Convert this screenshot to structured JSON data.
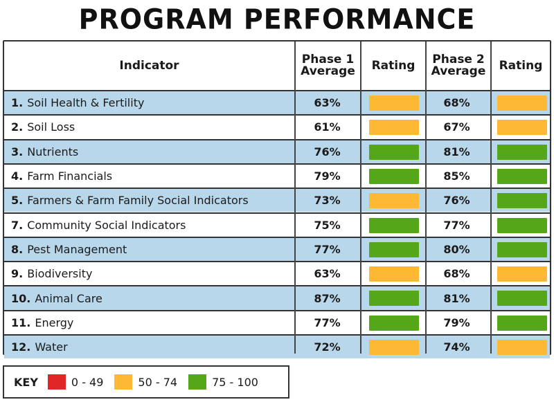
{
  "title": "PROGRAM PERFORMANCE",
  "headers": {
    "indicator": "Indicator",
    "phase1_line1": "Phase 1",
    "phase1_line2": "Average",
    "rating1": "Rating",
    "phase2_line1": "Phase 2",
    "phase2_line2": "Average",
    "rating2": "Rating"
  },
  "colors": {
    "red": "#e02626",
    "orange": "#fdb934",
    "green": "#55a619",
    "shade": "#b9d7ea"
  },
  "rows": [
    {
      "num": "1.",
      "name": "Soil Health & Fertility",
      "phase1": "63%",
      "rating1": "orange",
      "phase2": "68%",
      "rating2": "orange"
    },
    {
      "num": "2.",
      "name": "Soil Loss",
      "phase1": "61%",
      "rating1": "orange",
      "phase2": "67%",
      "rating2": "orange"
    },
    {
      "num": "3.",
      "name": "Nutrients",
      "phase1": "76%",
      "rating1": "green",
      "phase2": "81%",
      "rating2": "green"
    },
    {
      "num": "4.",
      "name": "Farm Financials",
      "phase1": "79%",
      "rating1": "green",
      "phase2": "85%",
      "rating2": "green"
    },
    {
      "num": "5.",
      "name": "Farmers & Farm Family Social Indicators",
      "phase1": "73%",
      "rating1": "orange",
      "phase2": "76%",
      "rating2": "green"
    },
    {
      "num": "7.",
      "name": "Community Social Indicators",
      "phase1": "75%",
      "rating1": "green",
      "phase2": "77%",
      "rating2": "green"
    },
    {
      "num": "8.",
      "name": "Pest Management",
      "phase1": "77%",
      "rating1": "green",
      "phase2": "80%",
      "rating2": "green"
    },
    {
      "num": "9.",
      "name": "Biodiversity",
      "phase1": "63%",
      "rating1": "orange",
      "phase2": "68%",
      "rating2": "orange"
    },
    {
      "num": "10.",
      "name": "Animal Care",
      "phase1": "87%",
      "rating1": "green",
      "phase2": "81%",
      "rating2": "green"
    },
    {
      "num": "11.",
      "name": "Energy",
      "phase1": "77%",
      "rating1": "green",
      "phase2": "79%",
      "rating2": "green"
    },
    {
      "num": "12.",
      "name": "Water",
      "phase1": "72%",
      "rating1": "orange",
      "phase2": "74%",
      "rating2": "orange"
    }
  ],
  "key": {
    "label": "KEY",
    "items": [
      {
        "color": "red",
        "text": "0 - 49"
      },
      {
        "color": "orange",
        "text": "50 - 74"
      },
      {
        "color": "green",
        "text": "75 - 100"
      }
    ]
  }
}
